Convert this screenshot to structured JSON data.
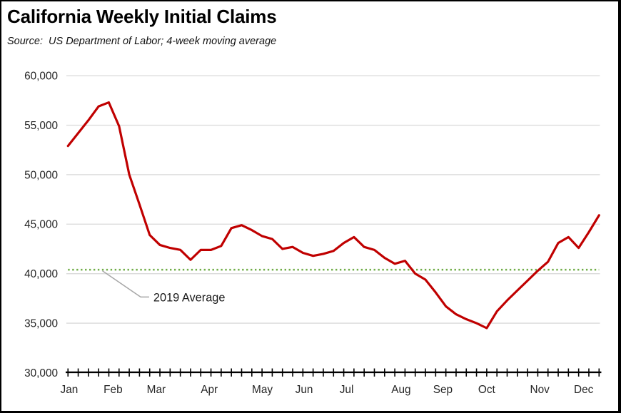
{
  "title": "California Weekly Initial Claims",
  "subtitle": "Source:  US Department of Labor; 4-week moving average",
  "colors": {
    "series_red": "#C00000",
    "average_green": "#70AD47",
    "gridline_gray": "#D9D9D9",
    "axis_black": "#000000",
    "leader_gray": "#A6A6A6",
    "label_text": "#262626"
  },
  "chart_data": {
    "type": "line",
    "title": "California Weekly Initial Claims",
    "subtitle": "Source:  US Department of Labor; 4-week moving average",
    "x_unit": "week (53 weekly observations, Jan through Dec)",
    "month_labels": [
      "Jan",
      "Feb",
      "Mar",
      "Apr",
      "May",
      "Jun",
      "Jul",
      "Aug",
      "Sep",
      "Oct",
      "Nov",
      "Dec"
    ],
    "month_start_week_index": [
      0,
      4,
      8,
      13,
      18,
      22,
      26,
      31,
      35,
      39,
      44,
      48
    ],
    "ylim": [
      30000,
      60000
    ],
    "ytick_step": 5000,
    "ytick_values": [
      30000,
      35000,
      40000,
      45000,
      50000,
      55000,
      60000
    ],
    "grid": "horizontal",
    "legend_position": "none",
    "series": [
      {
        "name": "Weekly initial claims, 4-week moving average",
        "color": "#C00000",
        "values": [
          52900,
          54200,
          55500,
          56900,
          57300,
          54900,
          50000,
          47000,
          43900,
          42900,
          42600,
          42400,
          41400,
          42400,
          42400,
          42800,
          44600,
          44900,
          44400,
          43800,
          43500,
          42500,
          42700,
          42100,
          41800,
          42000,
          42300,
          43100,
          43700,
          42700,
          42400,
          41600,
          41000,
          41300,
          40000,
          39400,
          38100,
          36700,
          35900,
          35400,
          35000,
          34500,
          36200,
          37300,
          38300,
          39300,
          40300,
          41200,
          43100,
          43700,
          42600,
          44200,
          45900
        ]
      }
    ],
    "reference_line": {
      "label": "2019 Average",
      "value": 40400,
      "color": "#70AD47",
      "style": "dotted"
    },
    "annotation": {
      "text": "2019 Average"
    }
  }
}
